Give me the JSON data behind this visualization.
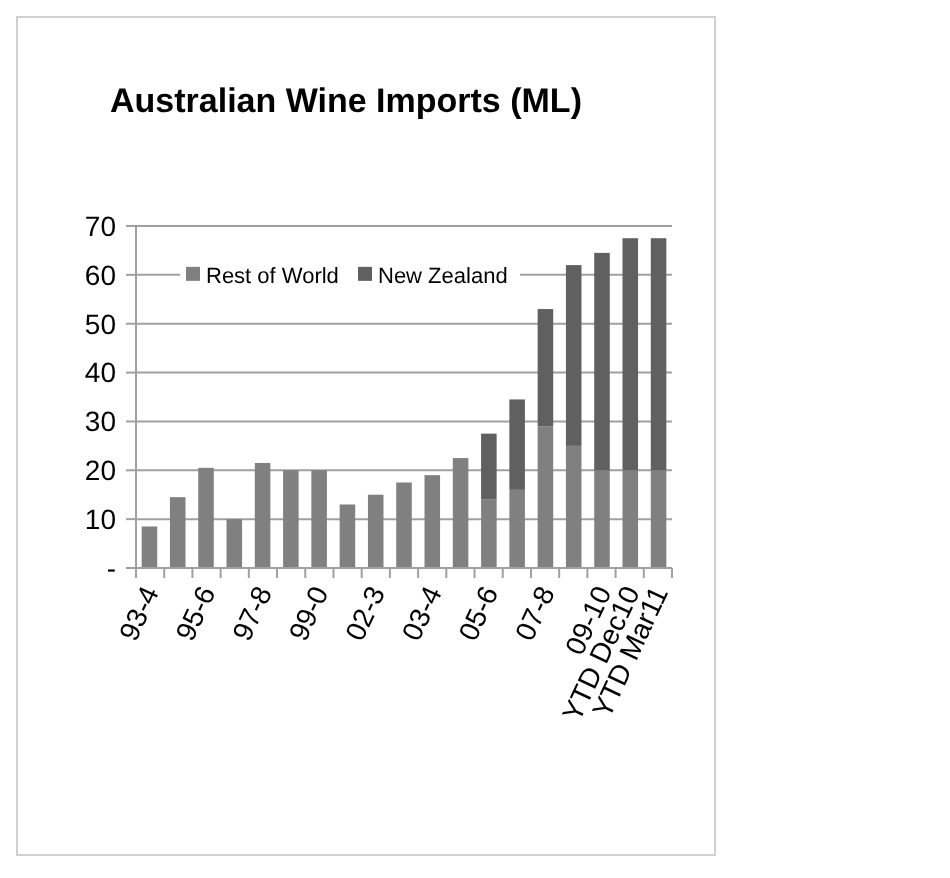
{
  "chart_data": {
    "type": "bar",
    "title": "Australian Wine Imports (ML)",
    "stacked": true,
    "categories": [
      "93-4",
      null,
      "95-6",
      null,
      "97-8",
      null,
      "99-0",
      null,
      "02-3",
      null,
      "03-4",
      null,
      "05-6",
      null,
      "07-8",
      null,
      "09-10",
      "YTD Dec10",
      "YTD Mar11"
    ],
    "series": [
      {
        "name": "Rest of World",
        "color": "#808080",
        "values": [
          8.5,
          14.5,
          20.5,
          10,
          21.5,
          20,
          20,
          13,
          15,
          17.5,
          19,
          22.5,
          14,
          16,
          29,
          25,
          20,
          20,
          20
        ]
      },
      {
        "name": "New Zealand",
        "color": "#606060",
        "values": [
          0,
          0,
          0,
          0,
          0,
          0,
          0,
          0,
          0,
          0,
          0,
          0,
          13.5,
          18.5,
          24,
          37,
          44.5,
          47.5,
          47.5
        ]
      }
    ],
    "ylim": [
      0,
      70
    ],
    "yticks": [
      {
        "value": 0,
        "label": "-"
      },
      10,
      20,
      30,
      40,
      50,
      60,
      70
    ],
    "grid": "y",
    "legend": "top"
  }
}
